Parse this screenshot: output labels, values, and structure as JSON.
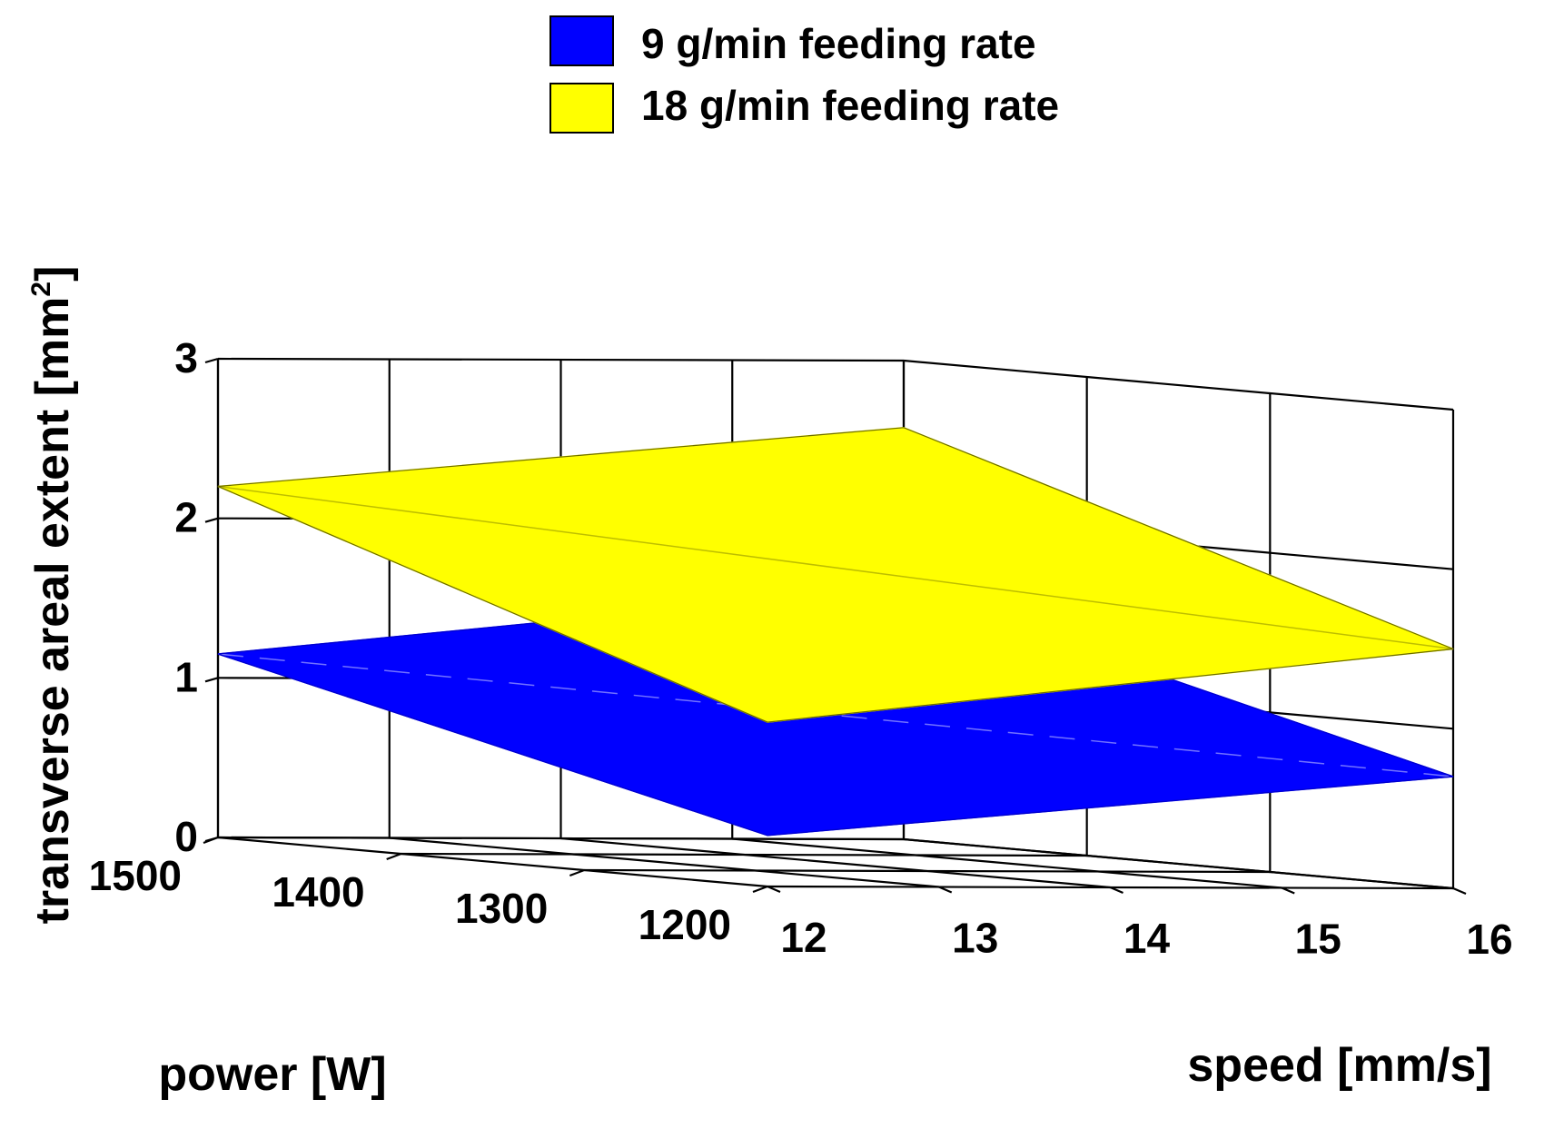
{
  "chart_data": {
    "type": "surface3d",
    "title": "",
    "xlabel": "speed [mm/s]",
    "ylabel": "power [W]",
    "zlabel_main": "transverse areal extent [mm",
    "zlabel_sup": "2",
    "zlabel_close": "]",
    "x_ticks": [
      12,
      13,
      14,
      15,
      16
    ],
    "y_ticks": [
      1200,
      1300,
      1400,
      1500
    ],
    "z_ticks": [
      0,
      1,
      2,
      3
    ],
    "xlim": [
      12,
      16
    ],
    "ylim": [
      1200,
      1500
    ],
    "zlim": [
      0,
      3
    ],
    "grid": true,
    "legend_position": "top",
    "series": [
      {
        "name": "9 g/min feeding rate",
        "color": "#0000ff",
        "mesh_color": "#7f7fff",
        "corners": {
          "x12_y1200": 0.32,
          "x16_y1200": 0.7,
          "x12_y1500": 1.15,
          "x16_y1500": 1.58
        }
      },
      {
        "name": "18 g/min feeding rate",
        "color": "#ffff00",
        "mesh_color": "#000000",
        "corners": {
          "x12_y1200": 1.03,
          "x16_y1200": 1.5,
          "x12_y1500": 2.2,
          "x16_y1500": 2.58
        }
      }
    ]
  }
}
